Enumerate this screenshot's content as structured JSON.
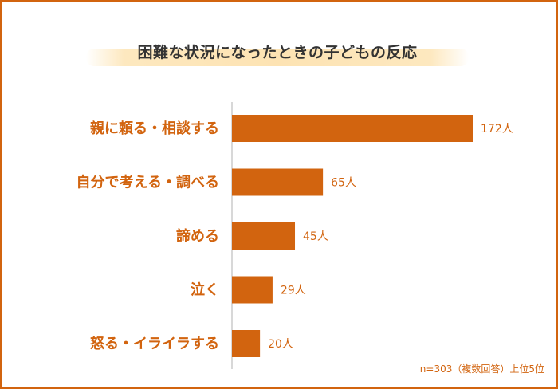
{
  "chart_data": {
    "type": "bar",
    "orientation": "horizontal",
    "title": "困難な状況になったときの子どもの反応",
    "categories": [
      "親に頼る・相談する",
      "自分で考える・調べる",
      "諦める",
      "泣く",
      "怒る・イライラする"
    ],
    "values": [
      172,
      65,
      45,
      29,
      20
    ],
    "value_labels": [
      "172人",
      "65人",
      "45人",
      "29人",
      "20人"
    ],
    "unit": "人",
    "note": "n=303（複数回答）上位5位",
    "colors": {
      "bar": "#d2640f",
      "frame": "#d2640f",
      "title_highlight": "#fde3b3",
      "axis": "#d8d8d8"
    }
  }
}
